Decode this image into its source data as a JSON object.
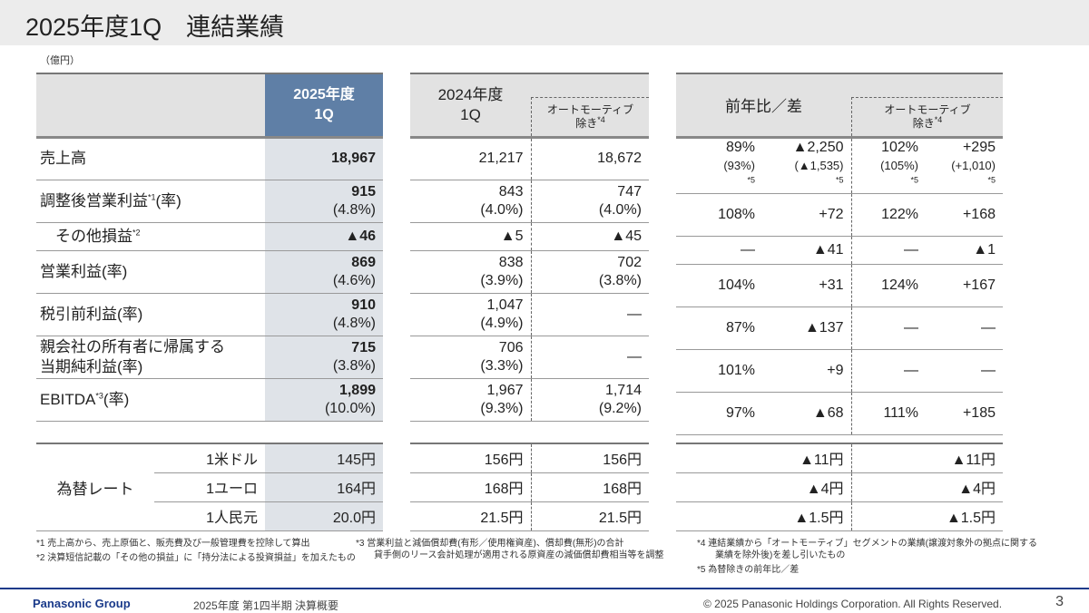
{
  "title": "2025年度1Q　連結業績",
  "unit": "（億円）",
  "left": {
    "header": "2025年度\n1Q"
  },
  "middle": {
    "header": "2024年度\n1Q",
    "auto_header": "オートモーティブ\n除き",
    "auto_sup": "*4"
  },
  "right": {
    "header": "前年比／差",
    "auto_header": "オートモーティブ\n除き",
    "auto_sup": "*4"
  },
  "rows": [
    {
      "label": {
        "pre": "売上高",
        "sup": "",
        "post": ""
      },
      "fy25": {
        "v": "18,967"
      },
      "fy24": {
        "v": "21,217"
      },
      "fy24_auto": {
        "v": "18,672"
      },
      "yoy_pct": {
        "v": "89%",
        "s": "(93%)",
        "ss": "*5"
      },
      "yoy_diff": {
        "v": "▲2,250",
        "s": "(▲1,535)",
        "ss": "*5"
      },
      "auto_pct": {
        "v": "102%",
        "s": "(105%)",
        "ss": "*5"
      },
      "auto_diff": {
        "v": "+295",
        "s": "(+1,010)",
        "ss": "*5"
      }
    },
    {
      "label": {
        "pre": "調整後営業利益",
        "sup": "*1",
        "post": "(率)"
      },
      "fy25": {
        "v": "915",
        "s": "(4.8%)"
      },
      "fy24": {
        "v": "843",
        "s": "(4.0%)"
      },
      "fy24_auto": {
        "v": "747",
        "s": "(4.0%)"
      },
      "yoy_pct": {
        "v": "108%"
      },
      "yoy_diff": {
        "v": "+72"
      },
      "auto_pct": {
        "v": "122%"
      },
      "auto_diff": {
        "v": "+168"
      }
    },
    {
      "label": {
        "pre": "　その他損益",
        "sup": "*2",
        "post": ""
      },
      "fy25": {
        "v": "▲46"
      },
      "fy24": {
        "v": "▲5"
      },
      "fy24_auto": {
        "v": "▲45"
      },
      "yoy_pct": {
        "v": "―"
      },
      "yoy_diff": {
        "v": "▲41"
      },
      "auto_pct": {
        "v": "―"
      },
      "auto_diff": {
        "v": "▲1"
      }
    },
    {
      "label": {
        "pre": "営業利益(率)",
        "sup": "",
        "post": ""
      },
      "fy25": {
        "v": "869",
        "s": "(4.6%)"
      },
      "fy24": {
        "v": "838",
        "s": "(3.9%)"
      },
      "fy24_auto": {
        "v": "702",
        "s": "(3.8%)"
      },
      "yoy_pct": {
        "v": "104%"
      },
      "yoy_diff": {
        "v": "+31"
      },
      "auto_pct": {
        "v": "124%"
      },
      "auto_diff": {
        "v": "+167"
      }
    },
    {
      "label": {
        "pre": "税引前利益(率)",
        "sup": "",
        "post": ""
      },
      "fy25": {
        "v": "910",
        "s": "(4.8%)"
      },
      "fy24": {
        "v": "1,047",
        "s": "(4.9%)"
      },
      "fy24_auto": {
        "v": "―"
      },
      "yoy_pct": {
        "v": "87%"
      },
      "yoy_diff": {
        "v": "▲137"
      },
      "auto_pct": {
        "v": "―"
      },
      "auto_diff": {
        "v": "―"
      }
    },
    {
      "label": {
        "pre": "親会社の所有者に帰属する\n当期純利益(率)",
        "sup": "",
        "post": ""
      },
      "fy25": {
        "v": "715",
        "s": "(3.8%)"
      },
      "fy24": {
        "v": "706",
        "s": "(3.3%)"
      },
      "fy24_auto": {
        "v": "―"
      },
      "yoy_pct": {
        "v": "101%"
      },
      "yoy_diff": {
        "v": "+9"
      },
      "auto_pct": {
        "v": "―"
      },
      "auto_diff": {
        "v": "―"
      }
    },
    {
      "label": {
        "pre": "EBITDA",
        "sup": "*3",
        "post": "(率)"
      },
      "fy25": {
        "v": "1,899",
        "s": "(10.0%)"
      },
      "fy24": {
        "v": "1,967",
        "s": "(9.3%)"
      },
      "fy24_auto": {
        "v": "1,714",
        "s": "(9.2%)"
      },
      "yoy_pct": {
        "v": "97%"
      },
      "yoy_diff": {
        "v": "▲68"
      },
      "auto_pct": {
        "v": "111%"
      },
      "auto_diff": {
        "v": "+185"
      }
    }
  ],
  "fx": {
    "label": "為替レート",
    "rows": [
      {
        "currency": "1米ドル",
        "fy25": "145円",
        "fy24": "156円",
        "fy24_auto": "156円",
        "yoy_diff": "▲11円",
        "auto_diff": "▲11円"
      },
      {
        "currency": "1ユーロ",
        "fy25": "164円",
        "fy24": "168円",
        "fy24_auto": "168円",
        "yoy_diff": "▲4円",
        "auto_diff": "▲4円"
      },
      {
        "currency": "1人民元",
        "fy25": "20.0円",
        "fy24": "21.5円",
        "fy24_auto": "21.5円",
        "yoy_diff": "▲1.5円",
        "auto_diff": "▲1.5円"
      }
    ]
  },
  "footnotes": {
    "n1": "*1  売上高から、売上原価と、販売費及び一般管理費を控除して算出",
    "n2": "*2  決算短信記載の「その他の損益」に「持分法による投資損益」を加えたもの",
    "n3a": "*3  営業利益と減価償却費(有形／使用権資産)、償却費(無形)の合計",
    "n3b": "　　貸手側のリース会計処理が適用される原資産の減価償却費相当等を調整",
    "n4a": "*4  連結業績から「オートモーティブ」セグメントの業績(譲渡対象外の拠点に関する",
    "n4b": "　　業績を除外後)を差し引いたもの",
    "n5": "*5  為替除きの前年比／差"
  },
  "footer": {
    "brand": "Panasonic Group",
    "doc": "2025年度 第1四半期 決算概要",
    "copyright": "© 2025 Panasonic Holdings Corporation. All Rights Reserved.",
    "page": "3"
  },
  "colors": {
    "header_accent": "#5f7fa6",
    "brand": "#1a3a8a"
  }
}
